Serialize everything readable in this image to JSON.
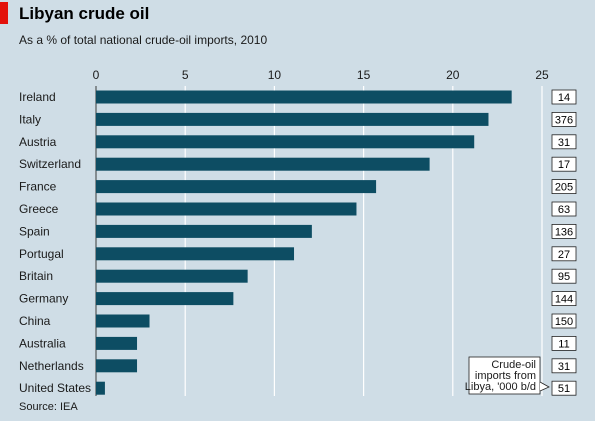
{
  "title": "Libyan crude oil",
  "subtitle": "As a % of total national crude-oil imports, 2010",
  "source": "Source: IEA",
  "annotation": [
    "Crude-oil",
    "imports from",
    "Libya, '000 b/d"
  ],
  "colors": {
    "bar": "#0d4d63",
    "background": "#cfdde6",
    "accent": "#e3120b",
    "gridline": "#ffffff"
  },
  "chart_data": {
    "type": "bar",
    "orientation": "horizontal",
    "categories": [
      "Ireland",
      "Italy",
      "Austria",
      "Switzerland",
      "France",
      "Greece",
      "Spain",
      "Portugal",
      "Britain",
      "Germany",
      "China",
      "Australia",
      "Netherlands",
      "United States"
    ],
    "values": [
      23.3,
      22.0,
      21.2,
      18.7,
      15.7,
      14.6,
      12.1,
      11.1,
      8.5,
      7.7,
      3.0,
      2.3,
      2.3,
      0.5
    ],
    "imports": [
      "14",
      "376",
      "31",
      "17",
      "205",
      "63",
      "136",
      "27",
      "95",
      "144",
      "150",
      "11",
      "31",
      "51"
    ],
    "xlim": [
      0,
      25
    ],
    "xticks": [
      0,
      5,
      10,
      15,
      20,
      25
    ],
    "xtick_labels": [
      "0",
      "5",
      "10",
      "15",
      "20",
      "25"
    ],
    "grid": true,
    "xaxis_position": "top"
  }
}
